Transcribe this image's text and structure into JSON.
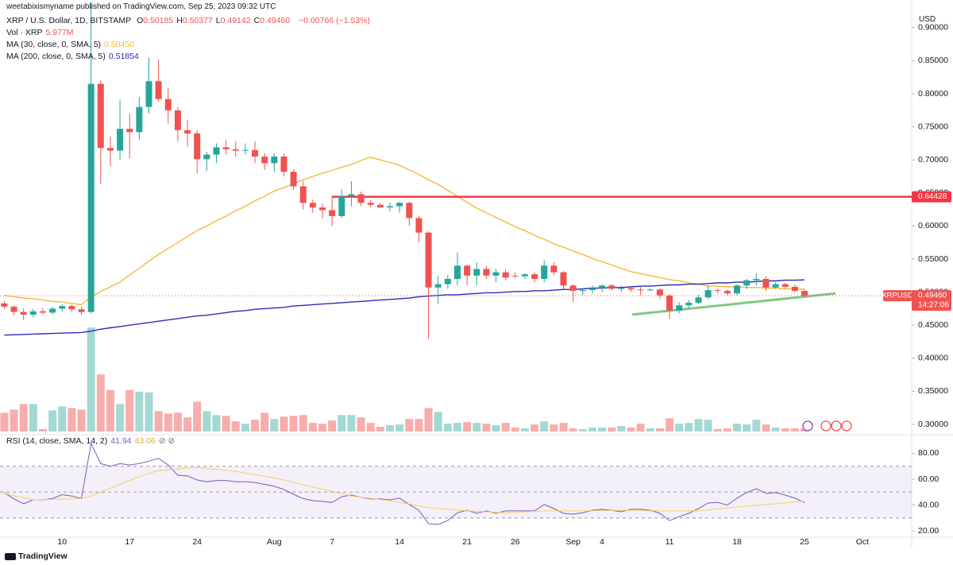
{
  "page": {
    "publisher": "weetabixismyname published on TradingView.com, Sep 25, 2023 09:32 UTC",
    "brand": "TradingView",
    "currency": "USD"
  },
  "chart_data": [
    {
      "type": "candlestick",
      "title": "XRP / U.S. Dollar, 1D, BITSTAMP",
      "ohlc_labels": [
        {
          "key": "O",
          "value": "0.50185"
        },
        {
          "key": "H",
          "value": "0.50377"
        },
        {
          "key": "L",
          "value": "0.49142"
        },
        {
          "key": "C",
          "value": "0.49460"
        }
      ],
      "change": "−0.00766 (−1.53%)",
      "symbol": "XRPUSD",
      "last_price_label": "0.49460",
      "countdown": "14:27:06",
      "up_color": "#26a69a",
      "down_color": "#ef5350",
      "categories": [
        null,
        null,
        null,
        null,
        null,
        null,
        "10",
        null,
        null,
        null,
        null,
        null,
        null,
        "17",
        null,
        null,
        null,
        null,
        null,
        null,
        "24",
        null,
        null,
        null,
        null,
        null,
        null,
        null,
        "Aug",
        null,
        null,
        null,
        null,
        null,
        "7",
        null,
        null,
        null,
        null,
        null,
        null,
        "14",
        null,
        null,
        null,
        null,
        null,
        null,
        "21",
        null,
        null,
        null,
        null,
        "26",
        null,
        null,
        null,
        null,
        null,
        "Sep",
        null,
        null,
        "4",
        null,
        null,
        null,
        null,
        null,
        null,
        "11",
        null,
        null,
        null,
        null,
        null,
        null,
        "18",
        null,
        null,
        null,
        null,
        null,
        null,
        "25",
        null,
        null,
        null,
        null,
        null,
        "Oct"
      ],
      "open": [
        0.483,
        0.478,
        0.47,
        0.466,
        0.471,
        0.469,
        0.475,
        0.479,
        0.474,
        0.47,
        0.815,
        0.718,
        0.714,
        0.747,
        0.742,
        0.78,
        0.819,
        0.792,
        0.775,
        0.745,
        0.74,
        0.701,
        0.708,
        0.719,
        0.716,
        0.714,
        0.715,
        0.705,
        0.695,
        0.705,
        0.682,
        0.66,
        0.635,
        0.628,
        0.624,
        0.615,
        0.645,
        0.648,
        0.635,
        0.632,
        0.628,
        0.63,
        0.635,
        0.612,
        0.59,
        0.507,
        0.512,
        0.52,
        0.54,
        0.525,
        0.535,
        0.525,
        0.53,
        0.525,
        0.524,
        0.527,
        0.52,
        0.54,
        0.53,
        0.51,
        0.502,
        0.503,
        0.506,
        0.51,
        0.505,
        0.506,
        0.504,
        0.503,
        0.504,
        0.495,
        0.472,
        0.48,
        0.484,
        0.492,
        0.503,
        0.502,
        0.498,
        0.51,
        0.518,
        0.52,
        0.507,
        0.512,
        0.508,
        0.50185,
        null,
        null,
        null,
        null,
        null,
        null
      ],
      "high": [
        0.487,
        0.48,
        0.476,
        0.475,
        0.476,
        0.478,
        0.482,
        0.481,
        0.478,
        0.938,
        0.82,
        0.735,
        0.79,
        0.77,
        0.795,
        0.855,
        0.852,
        0.808,
        0.78,
        0.76,
        0.745,
        0.712,
        0.725,
        0.73,
        0.728,
        0.725,
        0.728,
        0.71,
        0.71,
        0.71,
        0.686,
        0.668,
        0.64,
        0.634,
        0.645,
        0.655,
        0.668,
        0.652,
        0.64,
        0.635,
        0.635,
        0.637,
        0.637,
        0.615,
        0.592,
        0.525,
        0.526,
        0.56,
        0.542,
        0.545,
        0.54,
        0.535,
        0.535,
        0.53,
        0.528,
        0.53,
        0.548,
        0.545,
        0.532,
        0.512,
        0.505,
        0.51,
        0.512,
        0.512,
        0.51,
        0.508,
        0.508,
        0.506,
        0.506,
        0.497,
        0.485,
        0.488,
        0.496,
        0.51,
        0.505,
        0.504,
        0.512,
        0.52,
        0.528,
        0.524,
        0.515,
        0.514,
        0.512,
        0.50377,
        null,
        null,
        null,
        null,
        null,
        null
      ],
      "low": [
        0.474,
        0.465,
        0.458,
        0.462,
        0.466,
        0.466,
        0.47,
        0.47,
        0.466,
        0.468,
        0.663,
        0.69,
        0.7,
        0.702,
        0.73,
        0.77,
        0.788,
        0.755,
        0.728,
        0.72,
        0.68,
        0.683,
        0.695,
        0.708,
        0.705,
        0.708,
        0.695,
        0.685,
        0.682,
        0.675,
        0.655,
        0.625,
        0.62,
        0.612,
        0.6,
        0.612,
        0.63,
        0.63,
        0.628,
        0.627,
        0.622,
        0.62,
        0.6,
        0.575,
        0.43,
        0.482,
        0.505,
        0.51,
        0.51,
        0.51,
        0.52,
        0.515,
        0.518,
        0.521,
        0.52,
        0.515,
        0.515,
        0.525,
        0.505,
        0.485,
        0.495,
        0.498,
        0.5,
        0.502,
        0.5,
        0.5,
        0.495,
        0.501,
        0.49,
        0.46,
        0.468,
        0.475,
        0.482,
        0.49,
        0.498,
        0.495,
        0.495,
        0.505,
        0.51,
        0.502,
        0.505,
        0.505,
        0.5,
        0.49142,
        null,
        null,
        null,
        null,
        null,
        null
      ],
      "close": [
        0.478,
        0.47,
        0.466,
        0.471,
        0.469,
        0.475,
        0.479,
        0.474,
        0.47,
        0.815,
        0.718,
        0.714,
        0.747,
        0.742,
        0.78,
        0.819,
        0.792,
        0.775,
        0.745,
        0.74,
        0.701,
        0.708,
        0.719,
        0.716,
        0.714,
        0.715,
        0.705,
        0.695,
        0.705,
        0.682,
        0.66,
        0.635,
        0.628,
        0.624,
        0.615,
        0.645,
        0.648,
        0.635,
        0.632,
        0.628,
        0.63,
        0.635,
        0.612,
        0.59,
        0.507,
        0.512,
        0.52,
        0.54,
        0.525,
        0.535,
        0.525,
        0.53,
        0.522,
        0.524,
        0.527,
        0.52,
        0.54,
        0.53,
        0.51,
        0.502,
        0.503,
        0.506,
        0.51,
        0.505,
        0.506,
        0.504,
        0.503,
        0.504,
        0.495,
        0.472,
        0.48,
        0.484,
        0.492,
        0.503,
        0.502,
        0.498,
        0.51,
        0.518,
        0.52,
        0.507,
        0.512,
        0.508,
        0.50185,
        0.4946,
        null,
        null,
        null,
        null,
        null,
        null
      ],
      "ylim": [
        0.2868,
        0.9202
      ],
      "yticks": [
        {
          "value": 0.3,
          "label": "0.30000"
        },
        {
          "value": 0.35,
          "label": "0.35000"
        },
        {
          "value": 0.4,
          "label": "0.40000"
        },
        {
          "value": 0.45,
          "label": "0.45000"
        },
        {
          "value": 0.5,
          "label": "0.50000"
        },
        {
          "value": 0.55,
          "label": "0.55000"
        },
        {
          "value": 0.6,
          "label": "0.60000"
        },
        {
          "value": 0.65,
          "label": "0.65000"
        },
        {
          "value": 0.7,
          "label": "0.70000"
        },
        {
          "value": 0.75,
          "label": "0.75000"
        },
        {
          "value": 0.8,
          "label": "0.80000"
        },
        {
          "value": 0.85,
          "label": "0.85000"
        },
        {
          "value": 0.9,
          "label": "0.90000"
        }
      ],
      "grid": false,
      "volume": {
        "name": "Vol · XRP",
        "ylim": [
          0,
          800
        ],
        "up_color": "#a3d8d3",
        "down_color": "#f7adab",
        "values": [
          36,
          42,
          52.5,
          52.5,
          4.5,
          40.5,
          48,
          45,
          42,
          199.5,
          109.5,
          79.5,
          52.5,
          79.5,
          76.5,
          75,
          39,
          34.5,
          36,
          27,
          57,
          39,
          31.5,
          30,
          19.5,
          15,
          22.5,
          36,
          24,
          28.5,
          30,
          31.5,
          16.5,
          15,
          21,
          31.5,
          31.5,
          27,
          16.5,
          9,
          12,
          13.5,
          24,
          24,
          45,
          37.5,
          15,
          16.5,
          18,
          16.5,
          15,
          12,
          16.5,
          7.5,
          6,
          13.5,
          19.5,
          13.5,
          16.5,
          6,
          4.5,
          7.5,
          7.5,
          7.5,
          10.5,
          7.5,
          15,
          6,
          6,
          25.5,
          15,
          16.5,
          24,
          22.5,
          4.5,
          6,
          15,
          13.5,
          22.5,
          13.5,
          7.5,
          6,
          6,
          5.977,
          null,
          null,
          null,
          null,
          null,
          null
        ],
        "value_labels": [
          null,
          null,
          null,
          null,
          null,
          null,
          null,
          null,
          null,
          null,
          null,
          null,
          null,
          null,
          null,
          null,
          null,
          null,
          null,
          null,
          null,
          null,
          null,
          null,
          null,
          null,
          null,
          null,
          null,
          null,
          null,
          null,
          null,
          null,
          null,
          null,
          null,
          null,
          null,
          null,
          null,
          null,
          null,
          null,
          null,
          null,
          null,
          null,
          null,
          null,
          null,
          null,
          null,
          null,
          null,
          null,
          null,
          null,
          null,
          null,
          null,
          null,
          null,
          null,
          null,
          null,
          null,
          null,
          null,
          null,
          null,
          null,
          null,
          null,
          null,
          null,
          null,
          null,
          null,
          null,
          null,
          null,
          null,
          "5.977M",
          null,
          null,
          null,
          null,
          null,
          null
        ]
      },
      "series": [
        {
          "name": "MA (30, close, 0, SMA, 5)",
          "color": "#f7b936",
          "last_label": "0.50450",
          "values": [
            0.495,
            0.493,
            0.491,
            0.49,
            0.488,
            0.486,
            0.485,
            0.483,
            0.481,
            0.493,
            0.501,
            0.508,
            0.515,
            0.526,
            0.536,
            0.547,
            0.557,
            0.566,
            0.575,
            0.584,
            0.593,
            0.6,
            0.608,
            0.615,
            0.623,
            0.63,
            0.638,
            0.645,
            0.653,
            0.658,
            0.664,
            0.67,
            0.675,
            0.68,
            0.684,
            0.689,
            0.693,
            0.699,
            0.704,
            0.7,
            0.696,
            0.692,
            0.685,
            0.678,
            0.67,
            0.663,
            0.654,
            0.645,
            0.636,
            0.627,
            0.62,
            0.613,
            0.606,
            0.599,
            0.593,
            0.586,
            0.58,
            0.573,
            0.568,
            0.562,
            0.557,
            0.551,
            0.546,
            0.541,
            0.536,
            0.531,
            0.528,
            0.525,
            0.522,
            0.519,
            0.517,
            0.514,
            0.512,
            0.509,
            0.509,
            0.508,
            0.508,
            0.507,
            0.507,
            0.506,
            0.506,
            0.505,
            0.505,
            0.5045,
            null,
            null,
            null,
            null,
            null,
            null
          ]
        },
        {
          "name": "MA (200, close, 0, SMA, 5)",
          "color": "#2e2bb8",
          "values": [
            0.435,
            0.4355,
            0.436,
            0.4365,
            0.437,
            0.4375,
            0.438,
            0.4385,
            0.439,
            0.441,
            0.444,
            0.446,
            0.448,
            0.45,
            0.452,
            0.454,
            0.456,
            0.458,
            0.46,
            0.462,
            0.464,
            0.465,
            0.467,
            0.469,
            0.471,
            0.472,
            0.474,
            0.475,
            0.476,
            0.477,
            0.479,
            0.48,
            0.481,
            0.482,
            0.483,
            0.484,
            0.485,
            0.486,
            0.487,
            0.488,
            0.489,
            0.49,
            0.491,
            0.493,
            0.494,
            0.495,
            0.496,
            0.496,
            0.497,
            0.498,
            0.499,
            0.499,
            0.5,
            0.501,
            0.501,
            0.502,
            0.502,
            0.503,
            0.504,
            0.504,
            0.505,
            0.506,
            0.506,
            0.507,
            0.507,
            0.508,
            0.509,
            0.509,
            0.51,
            0.511,
            0.511,
            0.512,
            0.512,
            0.513,
            0.514,
            0.514,
            0.515,
            0.515,
            0.516,
            0.517,
            0.517,
            0.518,
            0.518,
            0.51854,
            null,
            null,
            null,
            null,
            null,
            null
          ]
        }
      ],
      "horizontal_line": {
        "value": 0.64428,
        "label": "0.64428",
        "color": "#f23645"
      },
      "trendline": {
        "values": [
          0.466,
          0.498
        ],
        "color": "#81c784"
      }
    },
    {
      "type": "line",
      "title": "RSI (14, close, SMA, 14, 2)",
      "ylim": [
        16.4,
        91.3
      ],
      "yticks": [
        {
          "value": 20,
          "label": "20.00"
        },
        {
          "value": 40,
          "label": "40.00"
        },
        {
          "value": 60,
          "label": "60.00"
        },
        {
          "value": 80,
          "label": "80.00"
        }
      ],
      "bands": [
        30,
        70
      ],
      "midline": 50,
      "series": [
        {
          "color": "#7e57c2",
          "values": [
            49.6,
            44.7,
            41,
            44,
            44,
            45,
            48,
            47,
            45,
            87.6,
            72,
            70,
            72,
            71,
            72,
            74,
            76,
            71,
            63,
            62.5,
            59.4,
            58,
            59,
            59,
            58,
            58,
            57.5,
            56,
            54.5,
            52,
            48.3,
            45,
            43.4,
            42.8,
            42,
            46.5,
            47.7,
            46,
            44.7,
            44.7,
            44,
            45.3,
            40.4,
            36,
            25.6,
            25,
            28,
            34,
            36,
            33.6,
            35.5,
            33.6,
            35.5,
            35.5,
            35.5,
            35.5,
            40.4,
            37.3,
            33.6,
            33,
            34,
            36,
            36.7,
            36,
            34.8,
            36.7,
            36.7,
            36,
            33.6,
            28,
            31,
            33.6,
            37.3,
            41.6,
            42,
            40,
            45.3,
            49.6,
            52.6,
            49,
            49.6,
            47.7,
            45.3,
            41.94,
            null,
            null,
            null,
            null,
            null,
            null
          ]
        },
        {
          "color": "#f5cf62",
          "values": [
            49,
            47.3,
            45.7,
            44,
            44.2,
            44.4,
            44.6,
            44.8,
            45,
            47,
            50,
            53,
            56,
            59,
            62,
            64.5,
            66.7,
            67.3,
            67.9,
            68.5,
            69,
            68.3,
            67.5,
            66.8,
            66,
            64.8,
            63.5,
            62.3,
            61,
            59.3,
            57.5,
            55.8,
            54,
            52.3,
            50.5,
            48.8,
            47,
            46.1,
            45.2,
            44.3,
            43.4,
            42.1,
            40.7,
            39.4,
            38,
            37.4,
            36.8,
            36.1,
            35.5,
            35.1,
            34.8,
            34.4,
            34,
            34.4,
            34.8,
            35.1,
            35.5,
            35.5,
            35.5,
            35.5,
            35.5,
            35.6,
            35.8,
            35.9,
            36,
            35.9,
            35.8,
            35.6,
            35.5,
            35.5,
            35.5,
            35.5,
            35.5,
            36.3,
            37,
            37.8,
            38.5,
            39.1,
            39.8,
            40.4,
            41,
            41.7,
            42.4,
            43.06,
            null,
            null,
            null,
            null,
            null,
            null
          ]
        }
      ]
    }
  ]
}
